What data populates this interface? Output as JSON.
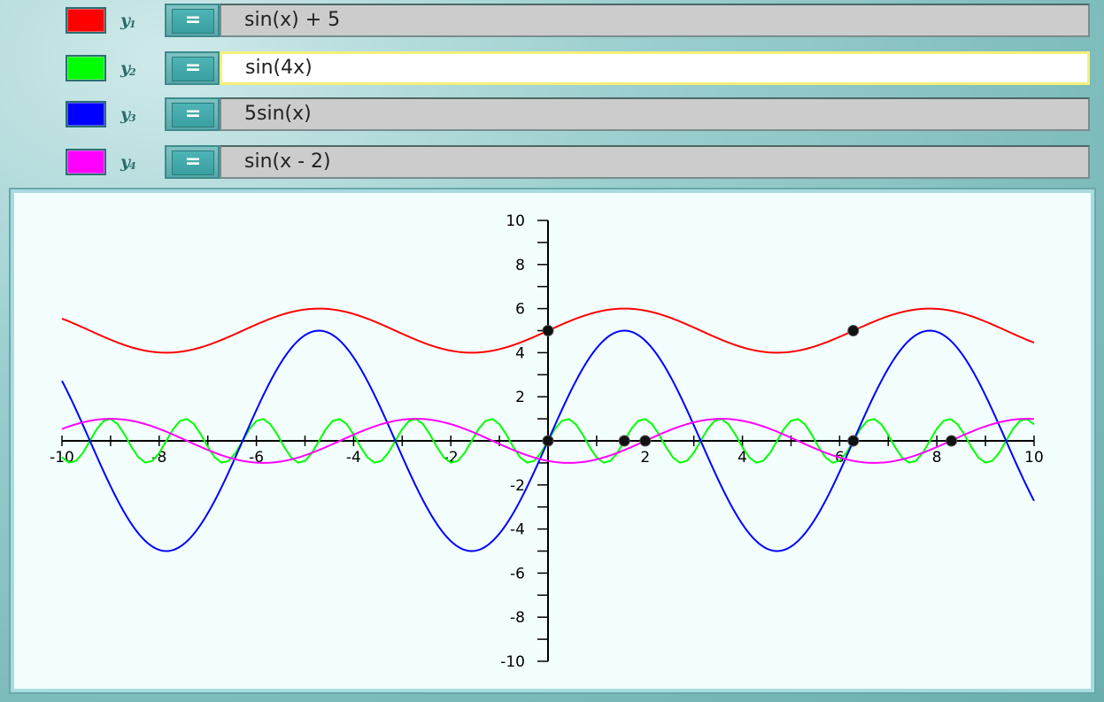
{
  "functions": [
    {
      "label": "y",
      "sub": "1",
      "expr": "sin(x) + 5",
      "color": "#ff0000",
      "eq": "=",
      "active": false
    },
    {
      "label": "y",
      "sub": "2",
      "expr": "sin(4x)",
      "color": "#00ff00",
      "eq": "=",
      "active": true
    },
    {
      "label": "y",
      "sub": "3",
      "expr": "5sin(x)",
      "color": "#0000ff",
      "eq": "=",
      "active": false
    },
    {
      "label": "y",
      "sub": "4",
      "expr": "sin(x - 2)",
      "color": "#ff00ff",
      "eq": "=",
      "active": false
    }
  ],
  "chart_data": {
    "type": "line",
    "xlim": [
      -10,
      10
    ],
    "ylim": [
      -10,
      10
    ],
    "x_ticks": [
      "-10",
      "-8",
      "-6",
      "-4",
      "-2",
      "2",
      "4",
      "6",
      "8",
      "10"
    ],
    "y_ticks": [
      "10",
      "8",
      "6",
      "4",
      "2",
      "-2",
      "-4",
      "-6",
      "-8",
      "-10"
    ],
    "series": [
      {
        "name": "sin(x) + 5",
        "color": "#ff0000",
        "fn": "sin(x)+5"
      },
      {
        "name": "sin(4x)",
        "color": "#00ff00",
        "fn": "sin(4x)"
      },
      {
        "name": "5sin(x)",
        "color": "#0000ff",
        "fn": "5sin(x)"
      },
      {
        "name": "sin(x - 2)",
        "color": "#ff00ff",
        "fn": "sin(x-2)"
      }
    ],
    "marked_points": [
      [
        0,
        5
      ],
      [
        6.28,
        5
      ],
      [
        0,
        0
      ],
      [
        1.57,
        0
      ],
      [
        2,
        0
      ],
      [
        6.28,
        0
      ],
      [
        8.3,
        0
      ]
    ]
  }
}
